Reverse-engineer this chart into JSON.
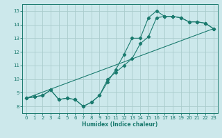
{
  "xlabel": "Humidex (Indice chaleur)",
  "bg_color": "#cce8eb",
  "grid_color": "#aacccc",
  "line_color": "#1a7a6e",
  "xlim": [
    -0.5,
    23.5
  ],
  "ylim": [
    7.5,
    15.5
  ],
  "xticks": [
    0,
    1,
    2,
    3,
    4,
    5,
    6,
    7,
    8,
    9,
    10,
    11,
    12,
    13,
    14,
    15,
    16,
    17,
    18,
    19,
    20,
    21,
    22,
    23
  ],
  "yticks": [
    8,
    9,
    10,
    11,
    12,
    13,
    14,
    15
  ],
  "line1_x": [
    0,
    1,
    2,
    3,
    4,
    5,
    6,
    7,
    8,
    9,
    10,
    11,
    12,
    13,
    14,
    15,
    16,
    17,
    18,
    19,
    20,
    21,
    22,
    23
  ],
  "line1_y": [
    8.6,
    8.7,
    8.8,
    9.2,
    8.5,
    8.6,
    8.5,
    8.0,
    8.3,
    8.8,
    9.8,
    10.7,
    11.8,
    13.0,
    13.0,
    14.5,
    15.0,
    14.6,
    14.6,
    14.5,
    14.2,
    14.2,
    14.1,
    13.7
  ],
  "line2_x": [
    0,
    1,
    2,
    3,
    4,
    5,
    6,
    7,
    8,
    9,
    10,
    11,
    12,
    13,
    14,
    15,
    16,
    17,
    18,
    19,
    20,
    21,
    22,
    23
  ],
  "line2_y": [
    8.6,
    8.7,
    8.8,
    9.2,
    8.5,
    8.6,
    8.5,
    8.0,
    8.3,
    8.8,
    10.0,
    10.5,
    11.0,
    11.5,
    12.6,
    13.1,
    14.5,
    14.6,
    14.6,
    14.5,
    14.2,
    14.2,
    14.1,
    13.7
  ],
  "line3_x": [
    0,
    23
  ],
  "line3_y": [
    8.6,
    13.7
  ]
}
